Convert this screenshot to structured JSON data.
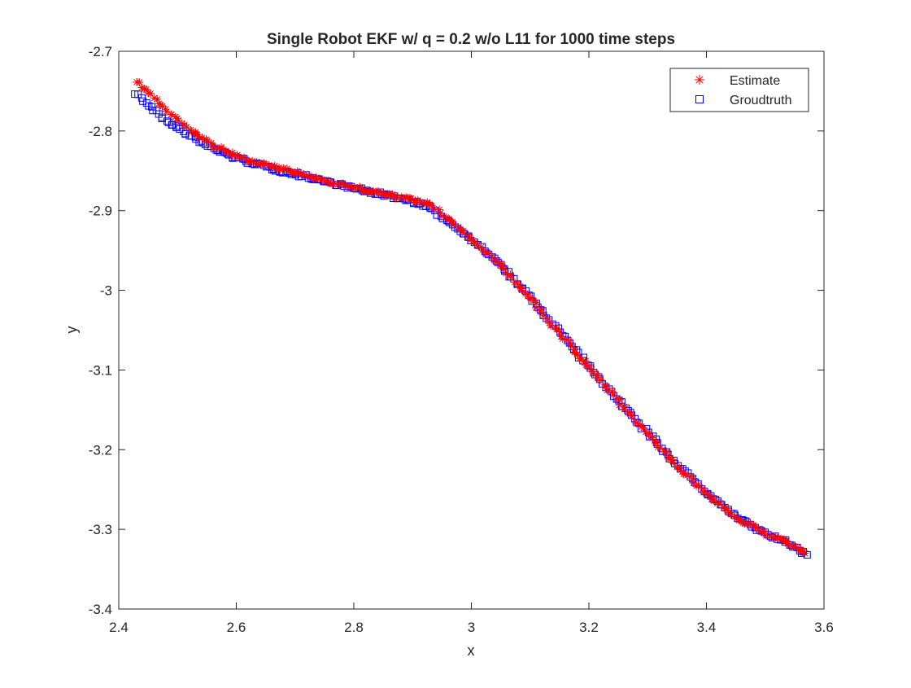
{
  "chart_data": {
    "type": "scatter",
    "title": "Single Robot EKF w/ q = 0.2 w/o L11 for 1000 time steps",
    "xlabel": "x",
    "ylabel": "y",
    "xlim": [
      2.4,
      3.6
    ],
    "ylim": [
      -3.4,
      -2.7
    ],
    "xticks": [
      "2.4",
      "2.6",
      "2.8",
      "3",
      "3.2",
      "3.4",
      "3.6"
    ],
    "yticks": [
      "-2.7",
      "-2.8",
      "-2.9",
      "-3",
      "-3.1",
      "-3.2",
      "-3.3",
      "-3.4"
    ],
    "grid": false,
    "legend_position": "top-right",
    "series": [
      {
        "name": "Estimate",
        "marker": "asterisk",
        "color": "#ff0000",
        "path": [
          [
            2.43,
            -2.738
          ],
          [
            2.45,
            -2.752
          ],
          [
            2.48,
            -2.773
          ],
          [
            2.52,
            -2.797
          ],
          [
            2.56,
            -2.818
          ],
          [
            2.6,
            -2.832
          ],
          [
            2.65,
            -2.843
          ],
          [
            2.7,
            -2.852
          ],
          [
            2.75,
            -2.862
          ],
          [
            2.8,
            -2.871
          ],
          [
            2.85,
            -2.879
          ],
          [
            2.9,
            -2.886
          ],
          [
            2.93,
            -2.893
          ],
          [
            2.96,
            -2.91
          ],
          [
            3.0,
            -2.935
          ],
          [
            3.05,
            -2.969
          ],
          [
            3.1,
            -3.01
          ],
          [
            3.15,
            -3.054
          ],
          [
            3.2,
            -3.097
          ],
          [
            3.25,
            -3.139
          ],
          [
            3.3,
            -3.18
          ],
          [
            3.35,
            -3.22
          ],
          [
            3.4,
            -3.255
          ],
          [
            3.45,
            -3.285
          ],
          [
            3.5,
            -3.305
          ],
          [
            3.54,
            -3.318
          ],
          [
            3.57,
            -3.33
          ]
        ]
      },
      {
        "name": "Groudtruth",
        "marker": "square",
        "color": "#0000ff",
        "path": [
          [
            2.43,
            -2.752
          ],
          [
            2.45,
            -2.768
          ],
          [
            2.48,
            -2.787
          ],
          [
            2.52,
            -2.806
          ],
          [
            2.56,
            -2.822
          ],
          [
            2.6,
            -2.834
          ],
          [
            2.65,
            -2.845
          ],
          [
            2.7,
            -2.854
          ],
          [
            2.75,
            -2.863
          ],
          [
            2.8,
            -2.872
          ],
          [
            2.85,
            -2.88
          ],
          [
            2.9,
            -2.888
          ],
          [
            2.93,
            -2.897
          ],
          [
            2.96,
            -2.913
          ],
          [
            3.0,
            -2.936
          ],
          [
            3.05,
            -2.969
          ],
          [
            3.1,
            -3.009
          ],
          [
            3.15,
            -3.053
          ],
          [
            3.2,
            -3.096
          ],
          [
            3.25,
            -3.138
          ],
          [
            3.3,
            -3.179
          ],
          [
            3.35,
            -3.219
          ],
          [
            3.4,
            -3.254
          ],
          [
            3.45,
            -3.284
          ],
          [
            3.5,
            -3.305
          ],
          [
            3.54,
            -3.318
          ],
          [
            3.57,
            -3.332
          ]
        ]
      }
    ]
  }
}
